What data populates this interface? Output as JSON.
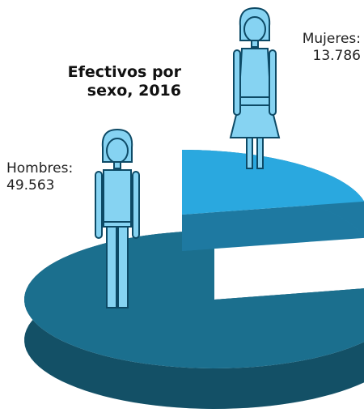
{
  "chart_data": {
    "type": "pie",
    "title": "Efectivos por sexo, 2016",
    "categories": [
      "Hombres:",
      "Mujeres:"
    ],
    "values": [
      49563,
      13786
    ],
    "value_labels": [
      "49.563",
      "13.786"
    ],
    "colors": [
      "#1b6f8e",
      "#2aa8df"
    ]
  }
}
